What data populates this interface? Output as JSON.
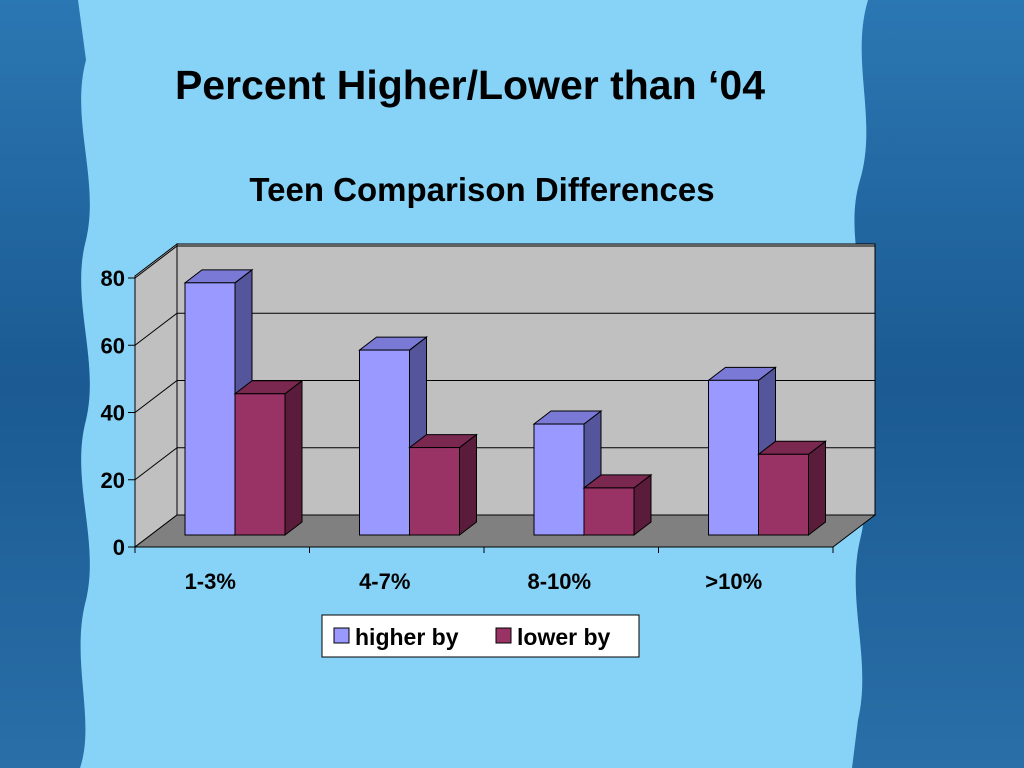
{
  "slide": {
    "title": "Percent Higher/Lower than ‘04"
  },
  "colors": {
    "background_light": "#87d3f7",
    "background_dark": "#1d5f9a",
    "higher_front": "#9999ff",
    "lower_front": "#993366",
    "wall": "#c0c0c0",
    "floor": "#808080"
  },
  "chart_data": {
    "type": "bar",
    "title": "Teen Comparison Differences",
    "categories": [
      "1-3%",
      "4-7%",
      "8-10%",
      ">10%"
    ],
    "series": [
      {
        "name": "higher by",
        "values": [
          75,
          55,
          33,
          46
        ]
      },
      {
        "name": "lower by",
        "values": [
          42,
          26,
          14,
          24
        ]
      }
    ],
    "yticks": [
      "0",
      "20",
      "40",
      "60",
      "80"
    ],
    "ylim": [
      0,
      80
    ],
    "xlabel": "",
    "ylabel": "",
    "grid": true,
    "legend": "bottom",
    "style": "3d-clustered"
  }
}
